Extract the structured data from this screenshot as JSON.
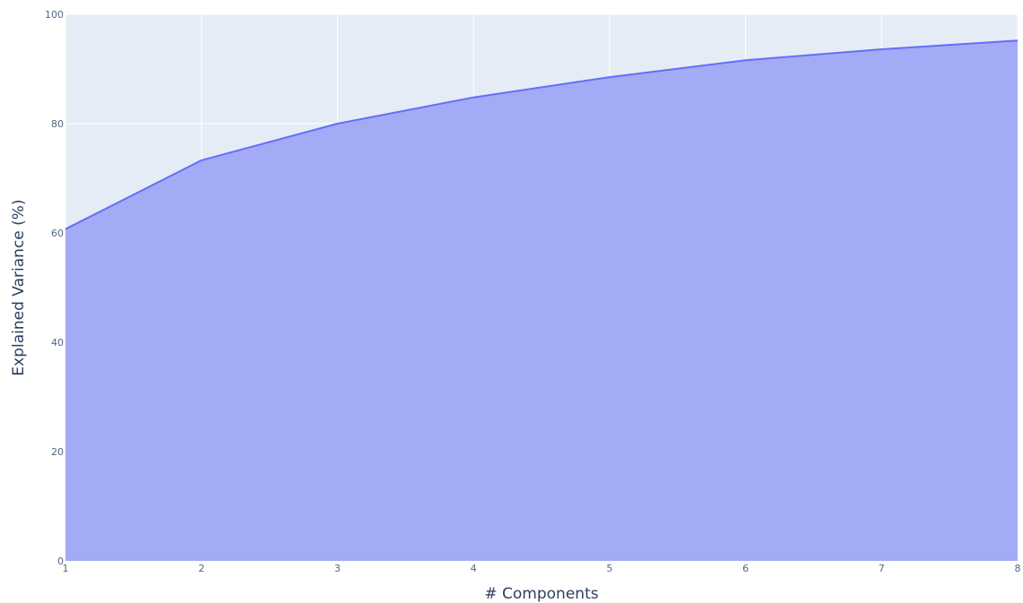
{
  "chart_data": {
    "type": "area",
    "title": "",
    "xlabel": "# Components",
    "ylabel": "Explained Variance (%)",
    "x": [
      1,
      2,
      3,
      4,
      5,
      6,
      7,
      8
    ],
    "y": [
      60.7,
      73.3,
      80.0,
      84.8,
      88.5,
      91.6,
      93.6,
      95.2
    ],
    "xlim": [
      1,
      8
    ],
    "ylim": [
      0,
      100
    ],
    "xticks": [
      "1",
      "2",
      "3",
      "4",
      "5",
      "6",
      "7",
      "8"
    ],
    "yticks": [
      "0",
      "20",
      "40",
      "60",
      "80",
      "100"
    ],
    "grid": true,
    "legend": "none",
    "colors": {
      "plot_background": "#e5ecf6",
      "grid": "#ffffff",
      "line": "#636efa",
      "fill": "#a3abf7",
      "tick_text": "#506784",
      "axis_title": "#2a3f5f"
    }
  }
}
